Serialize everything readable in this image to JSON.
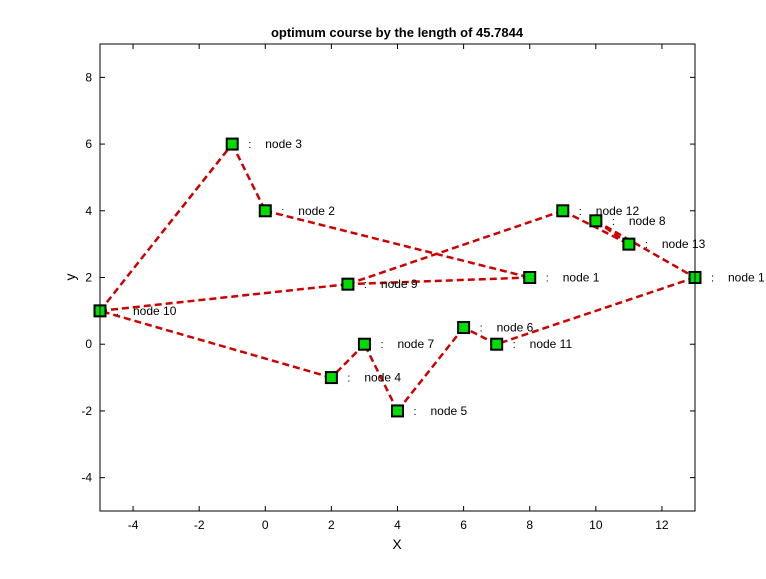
{
  "chart_data": {
    "type": "line",
    "title": "optimum course by the length of 45.7844",
    "xlabel": "X",
    "ylabel": "y",
    "xlim": [
      -5,
      13
    ],
    "ylim": [
      -5,
      9
    ],
    "x_ticks": [
      -4,
      -2,
      0,
      2,
      4,
      6,
      8,
      10,
      12
    ],
    "y_ticks": [
      -4,
      -2,
      0,
      2,
      4,
      6,
      8
    ],
    "grid": false,
    "legend": "none",
    "line_color": "#cc0000",
    "line_style": "dashed",
    "marker_fill": "#00dd00",
    "marker_edge": "#000000",
    "label_separator": ":",
    "nodes": [
      {
        "label": "node 1",
        "x": 8,
        "y": 2
      },
      {
        "label": "node 2",
        "x": 0,
        "y": 4
      },
      {
        "label": "node 3",
        "x": -1,
        "y": 6
      },
      {
        "label": "node 4",
        "x": 2,
        "y": -1
      },
      {
        "label": "node 5",
        "x": 4,
        "y": -2
      },
      {
        "label": "node 6",
        "x": 6,
        "y": 0.5
      },
      {
        "label": "node 7",
        "x": 3,
        "y": 0
      },
      {
        "label": "node 8",
        "x": 10,
        "y": 3.7
      },
      {
        "label": "node 9",
        "x": 2.5,
        "y": 1.8
      },
      {
        "label": "node 10",
        "x": -5,
        "y": 1
      },
      {
        "label": "node 11",
        "x": 7,
        "y": 0
      },
      {
        "label": "node 12",
        "x": 9,
        "y": 4
      },
      {
        "label": "node 13",
        "x": 11,
        "y": 3
      },
      {
        "label": "node 1",
        "x": 13,
        "y": 2
      }
    ],
    "route": [
      9,
      8,
      11,
      12,
      7,
      13,
      10,
      5,
      4,
      6,
      3,
      9,
      2,
      1,
      0,
      8
    ]
  }
}
